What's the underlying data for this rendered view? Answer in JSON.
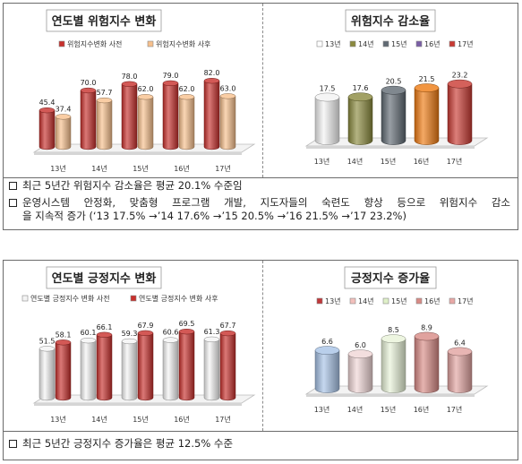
{
  "risk": {
    "changes": {
      "title": "연도별 위험지수 변화",
      "chart_data": {
        "type": "bar",
        "title": "연도별 위험지수 변화",
        "categories": [
          "13년",
          "14년",
          "15년",
          "16년",
          "17년"
        ],
        "series": [
          {
            "name": "위험지수변화 사전",
            "values": [
              45.4,
              70.0,
              78.0,
              79.0,
              82.0
            ],
            "color": "#c8302c"
          },
          {
            "name": "위험지수변화 사후",
            "values": [
              37.4,
              57.7,
              62.0,
              62.0,
              63.0
            ],
            "color": "#f7c08d"
          }
        ],
        "data_labels": [
          [
            "45.4",
            "70.0",
            "78.0",
            "79.0",
            "82.0"
          ],
          [
            "37.4",
            "57.7",
            "62.0",
            "62.0",
            "63.0"
          ]
        ],
        "ylim": [
          0,
          100
        ],
        "legend": "top",
        "grid": false
      }
    },
    "reduction": {
      "title": "위험지수 감소율",
      "chart_data": {
        "type": "bar",
        "title": "위험지수 감소율",
        "categories": [
          "13년",
          "14년",
          "15년",
          "16년",
          "17년"
        ],
        "values": [
          17.5,
          17.6,
          20.5,
          21.5,
          23.2
        ],
        "data_labels": [
          "17.5",
          "17.6",
          "20.5",
          "21.5",
          "23.2"
        ],
        "colors": [
          "#f3f3f3",
          "#8b8a3e",
          "#606a73",
          "#ee7b12",
          "#c93a32"
        ],
        "legend_colors": [
          "#ffffff",
          "#8b8a3e",
          "#606a73",
          "#7a5ea6",
          "#c93a32"
        ],
        "ylim": [
          0,
          25
        ],
        "legend": "top",
        "grid": false
      }
    },
    "notes": [
      {
        "text": "최근 5년간 위험지수 감소율은 평균 20.1% 수준임"
      },
      {
        "line1": "운영시스템 안정화, 맞춤형 프로그램 개발, 지도자들의 숙련도 향상 등으로 위험지수 감소",
        "line2": "을 지속적 증가 (‘13 17.5% →’14 17.6% →’15 20.5% →’16 21.5% →’17 23.2%)"
      }
    ]
  },
  "positive": {
    "changes": {
      "title": "연도별 긍정지수 변화",
      "chart_data": {
        "type": "bar",
        "title": "연도별 긍정지수 변화",
        "categories": [
          "13년",
          "14년",
          "15년",
          "16년",
          "17년"
        ],
        "series": [
          {
            "name": "연도별 긍정지수 변화 사전",
            "values": [
              51.5,
              60.1,
              59.3,
              60.6,
              61.3
            ],
            "color": "#f4f4f4"
          },
          {
            "name": "연도별 긍정지수 변화 사후",
            "values": [
              58.1,
              66.1,
              67.9,
              69.5,
              67.7
            ],
            "color": "#c8302c"
          }
        ],
        "data_labels": [
          [
            "51.5",
            "60.1",
            "59.3",
            "60.6",
            "61.3"
          ],
          [
            "58.1",
            "66.1",
            "67.9",
            "69.5",
            "67.7"
          ]
        ],
        "ylim": [
          0,
          80
        ],
        "legend": "top",
        "grid": false
      }
    },
    "increase": {
      "title": "긍정지수 증가율",
      "chart_data": {
        "type": "bar",
        "title": "긍정지수 증가율",
        "categories": [
          "13년",
          "14년",
          "15년",
          "16년",
          "17년"
        ],
        "values": [
          6.6,
          6.0,
          8.5,
          8.9,
          6.4
        ],
        "data_labels": [
          "6.6",
          "6.0",
          "8.5",
          "8.9",
          "6.4"
        ],
        "colors": [
          "#a7c3e6",
          "#f0d6d6",
          "#e8f3d8",
          "#d88b86",
          "#e1a3a0"
        ],
        "legend_colors": [
          "#c0383a",
          "#f2c0bc",
          "#dff0c8",
          "#d88b86",
          "#e8a8a6"
        ],
        "ylim": [
          0,
          10
        ],
        "legend": "top",
        "grid": false
      }
    },
    "note": {
      "text": "최근 5년간 긍정지수 증가율은 평균 12.5% 수준"
    }
  }
}
